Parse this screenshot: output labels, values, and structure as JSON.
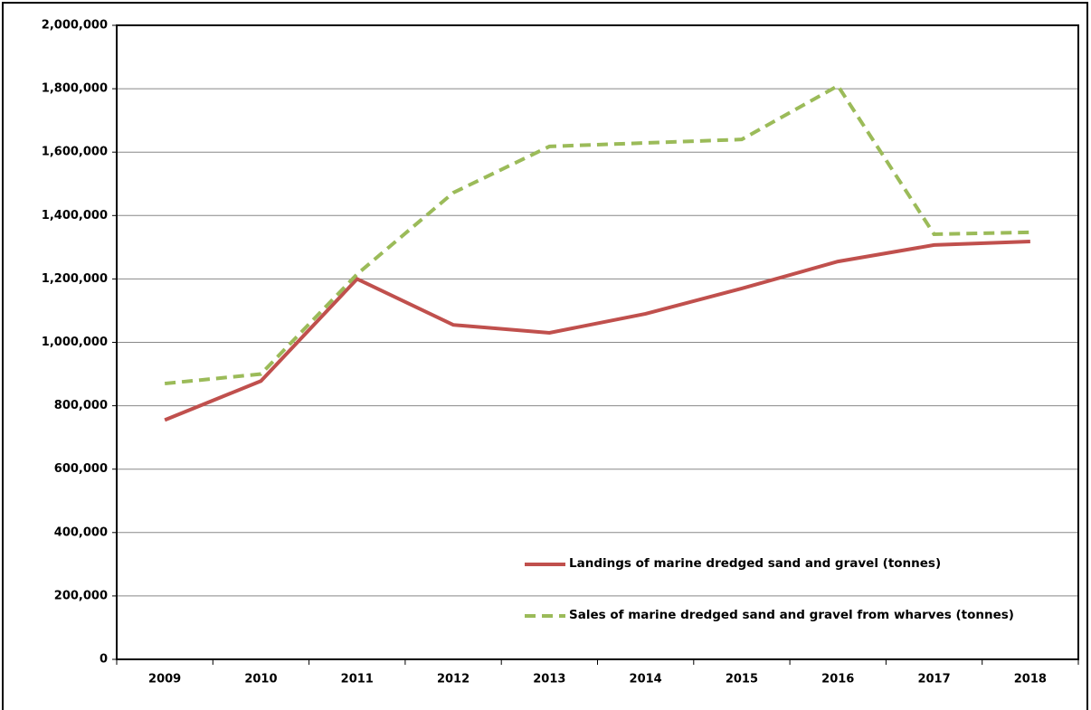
{
  "chart_data": {
    "type": "line",
    "categories": [
      "2009",
      "2010",
      "2011",
      "2012",
      "2013",
      "2014",
      "2015",
      "2016",
      "2017",
      "2018"
    ],
    "series": [
      {
        "name": "Landings of marine dredged sand and gravel (tonnes)",
        "color": "#c0504d",
        "dash": false,
        "values": [
          755000,
          878000,
          1200000,
          1055000,
          1030000,
          1090000,
          1170000,
          1255000,
          1307000,
          1318000
        ]
      },
      {
        "name": "Sales of marine dredged sand and gravel from wharves (tonnes)",
        "color": "#9bbb59",
        "dash": true,
        "values": [
          870000,
          900000,
          1215000,
          1472000,
          1618000,
          1629000,
          1640000,
          1809000,
          1341000,
          1347000
        ]
      }
    ],
    "ylim": [
      0,
      2000000
    ],
    "yticks": [
      0,
      {
        "value": 200000,
        "label": "200,000"
      },
      {
        "value": 400000,
        "label": "400,000"
      },
      {
        "value": 600000,
        "label": "600,000"
      },
      {
        "value": 800000,
        "label": "800,000"
      },
      {
        "value": 1000000,
        "label": "1,000,000"
      },
      {
        "value": 1200000,
        "label": "1,200,000"
      },
      {
        "value": 1400000,
        "label": "1,400,000"
      },
      {
        "value": 1600000,
        "label": "1,600,000"
      },
      {
        "value": 1800000,
        "label": "1,800,000"
      },
      {
        "value": 2000000,
        "label": "2,000,000"
      }
    ],
    "grid": true
  }
}
